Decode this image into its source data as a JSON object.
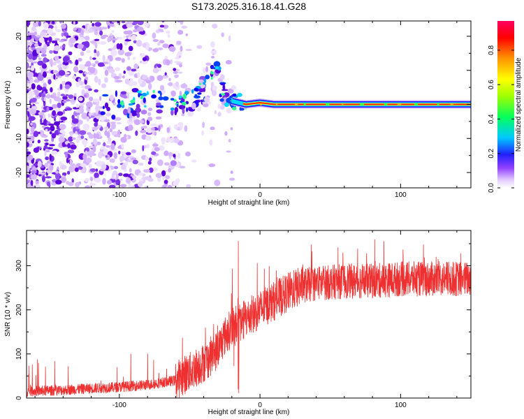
{
  "title": "S173.2025.316.18.41.G28",
  "chart_data": [
    {
      "type": "heatmap",
      "xlabel": "Height of straight line (km)",
      "ylabel": "Frequency (Hz)",
      "xlim": [
        -166,
        150
      ],
      "ylim": [
        -24.5,
        24.5
      ],
      "xticks": [
        -100,
        0,
        100
      ],
      "yticks": [
        -20,
        -10,
        0,
        10,
        20
      ],
      "colorbar": {
        "label": "Normalized spectral amplitude",
        "range": [
          0,
          0.97
        ],
        "ticks": [
          0.0,
          0.2,
          0.4,
          0.6,
          0.8
        ],
        "colormap": [
          "#e0c8ff",
          "#7000e0",
          "#0000ff",
          "#00c8ff",
          "#00ff60",
          "#a0ff00",
          "#ffff00",
          "#ff9000",
          "#ff0000",
          "#ff0060"
        ]
      },
      "carrier_track": [
        {
          "x": -166,
          "y": 0
        },
        {
          "x": -100,
          "y": 0
        },
        {
          "x": -80,
          "y": 2
        },
        {
          "x": -60,
          "y": 0
        },
        {
          "x": -45,
          "y": 3
        },
        {
          "x": -35,
          "y": 7
        },
        {
          "x": -30,
          "y": 11
        },
        {
          "x": -27,
          "y": 3
        },
        {
          "x": -20,
          "y": 1
        },
        {
          "x": -10,
          "y": 0
        },
        {
          "x": 0,
          "y": 0.5
        },
        {
          "x": 10,
          "y": 0
        },
        {
          "x": 150,
          "y": 0
        }
      ],
      "signal_onset_x": -20
    },
    {
      "type": "line",
      "xlabel": "Height of straight line (km)",
      "ylabel": "SNR (10 * v/v)",
      "xlim": [
        -166,
        150
      ],
      "ylim": [
        0,
        380
      ],
      "xticks": [
        -100,
        0,
        100
      ],
      "yticks": [
        0,
        100,
        200,
        300
      ],
      "series": [
        {
          "name": "SNR",
          "color": "#ee3030",
          "x": [
            -166,
            -140,
            -120,
            -100,
            -80,
            -60,
            -50,
            -40,
            -30,
            -25,
            -20,
            -15,
            -10,
            0,
            10,
            20,
            30,
            40,
            60,
            80,
            100,
            120,
            150
          ],
          "y": [
            15,
            18,
            22,
            25,
            30,
            40,
            60,
            80,
            110,
            140,
            160,
            170,
            180,
            200,
            220,
            240,
            255,
            260,
            265,
            265,
            270,
            270,
            270
          ]
        }
      ]
    }
  ]
}
